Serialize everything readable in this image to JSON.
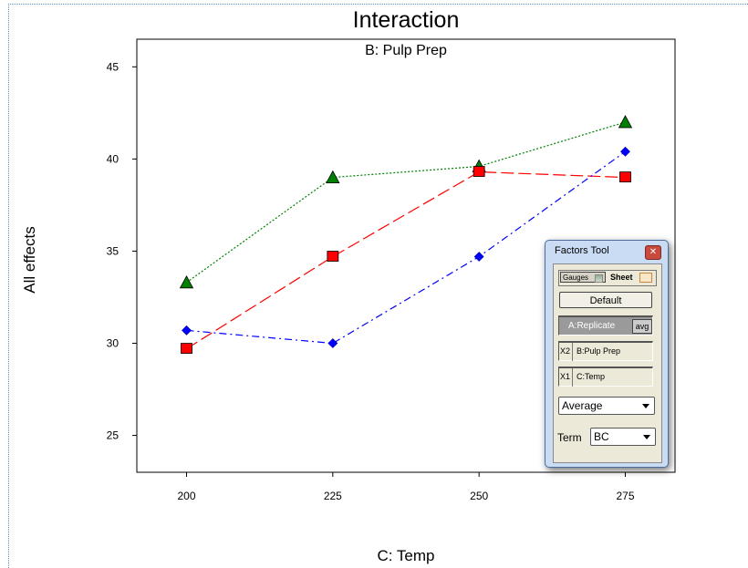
{
  "chart_data": {
    "type": "line",
    "title": "Interaction",
    "subtitle": "B: Pulp Prep",
    "xlabel": "C: Temp",
    "ylabel": "All effects",
    "x": [
      200,
      225,
      250,
      275
    ],
    "xticks": [
      "200",
      "225",
      "250",
      "275"
    ],
    "yticks": [
      "25",
      "30",
      "35",
      "40",
      "45"
    ],
    "ylim": [
      23,
      46.5
    ],
    "xlim": [
      191.5,
      283.5
    ],
    "grid": false,
    "legend": "none",
    "series": [
      {
        "values": [
          33.3,
          39.0,
          39.6,
          42.0
        ],
        "color": "#008000",
        "marker": "triangle",
        "dash": "2 2"
      },
      {
        "values": [
          29.7,
          34.7,
          39.3,
          39.0
        ],
        "color": "#ff0000",
        "marker": "square",
        "dash": "14 5"
      },
      {
        "values": [
          30.7,
          30.0,
          34.7,
          40.4
        ],
        "color": "#0000ff",
        "marker": "diamond",
        "dash": "8 4 2 4"
      }
    ]
  },
  "factors_tool": {
    "title": "Factors Tool",
    "tab_gauges": "Gauges",
    "tab_sheet": "Sheet",
    "default_button": "Default",
    "replicate_label": "A:Replicate",
    "replicate_value": "avg",
    "x2_key": "X2",
    "x2_factor": "B:Pulp Prep",
    "x1_key": "X1",
    "x1_factor": "C:Temp",
    "average_select": "Average",
    "term_label": "Term",
    "term_select": "BC"
  }
}
